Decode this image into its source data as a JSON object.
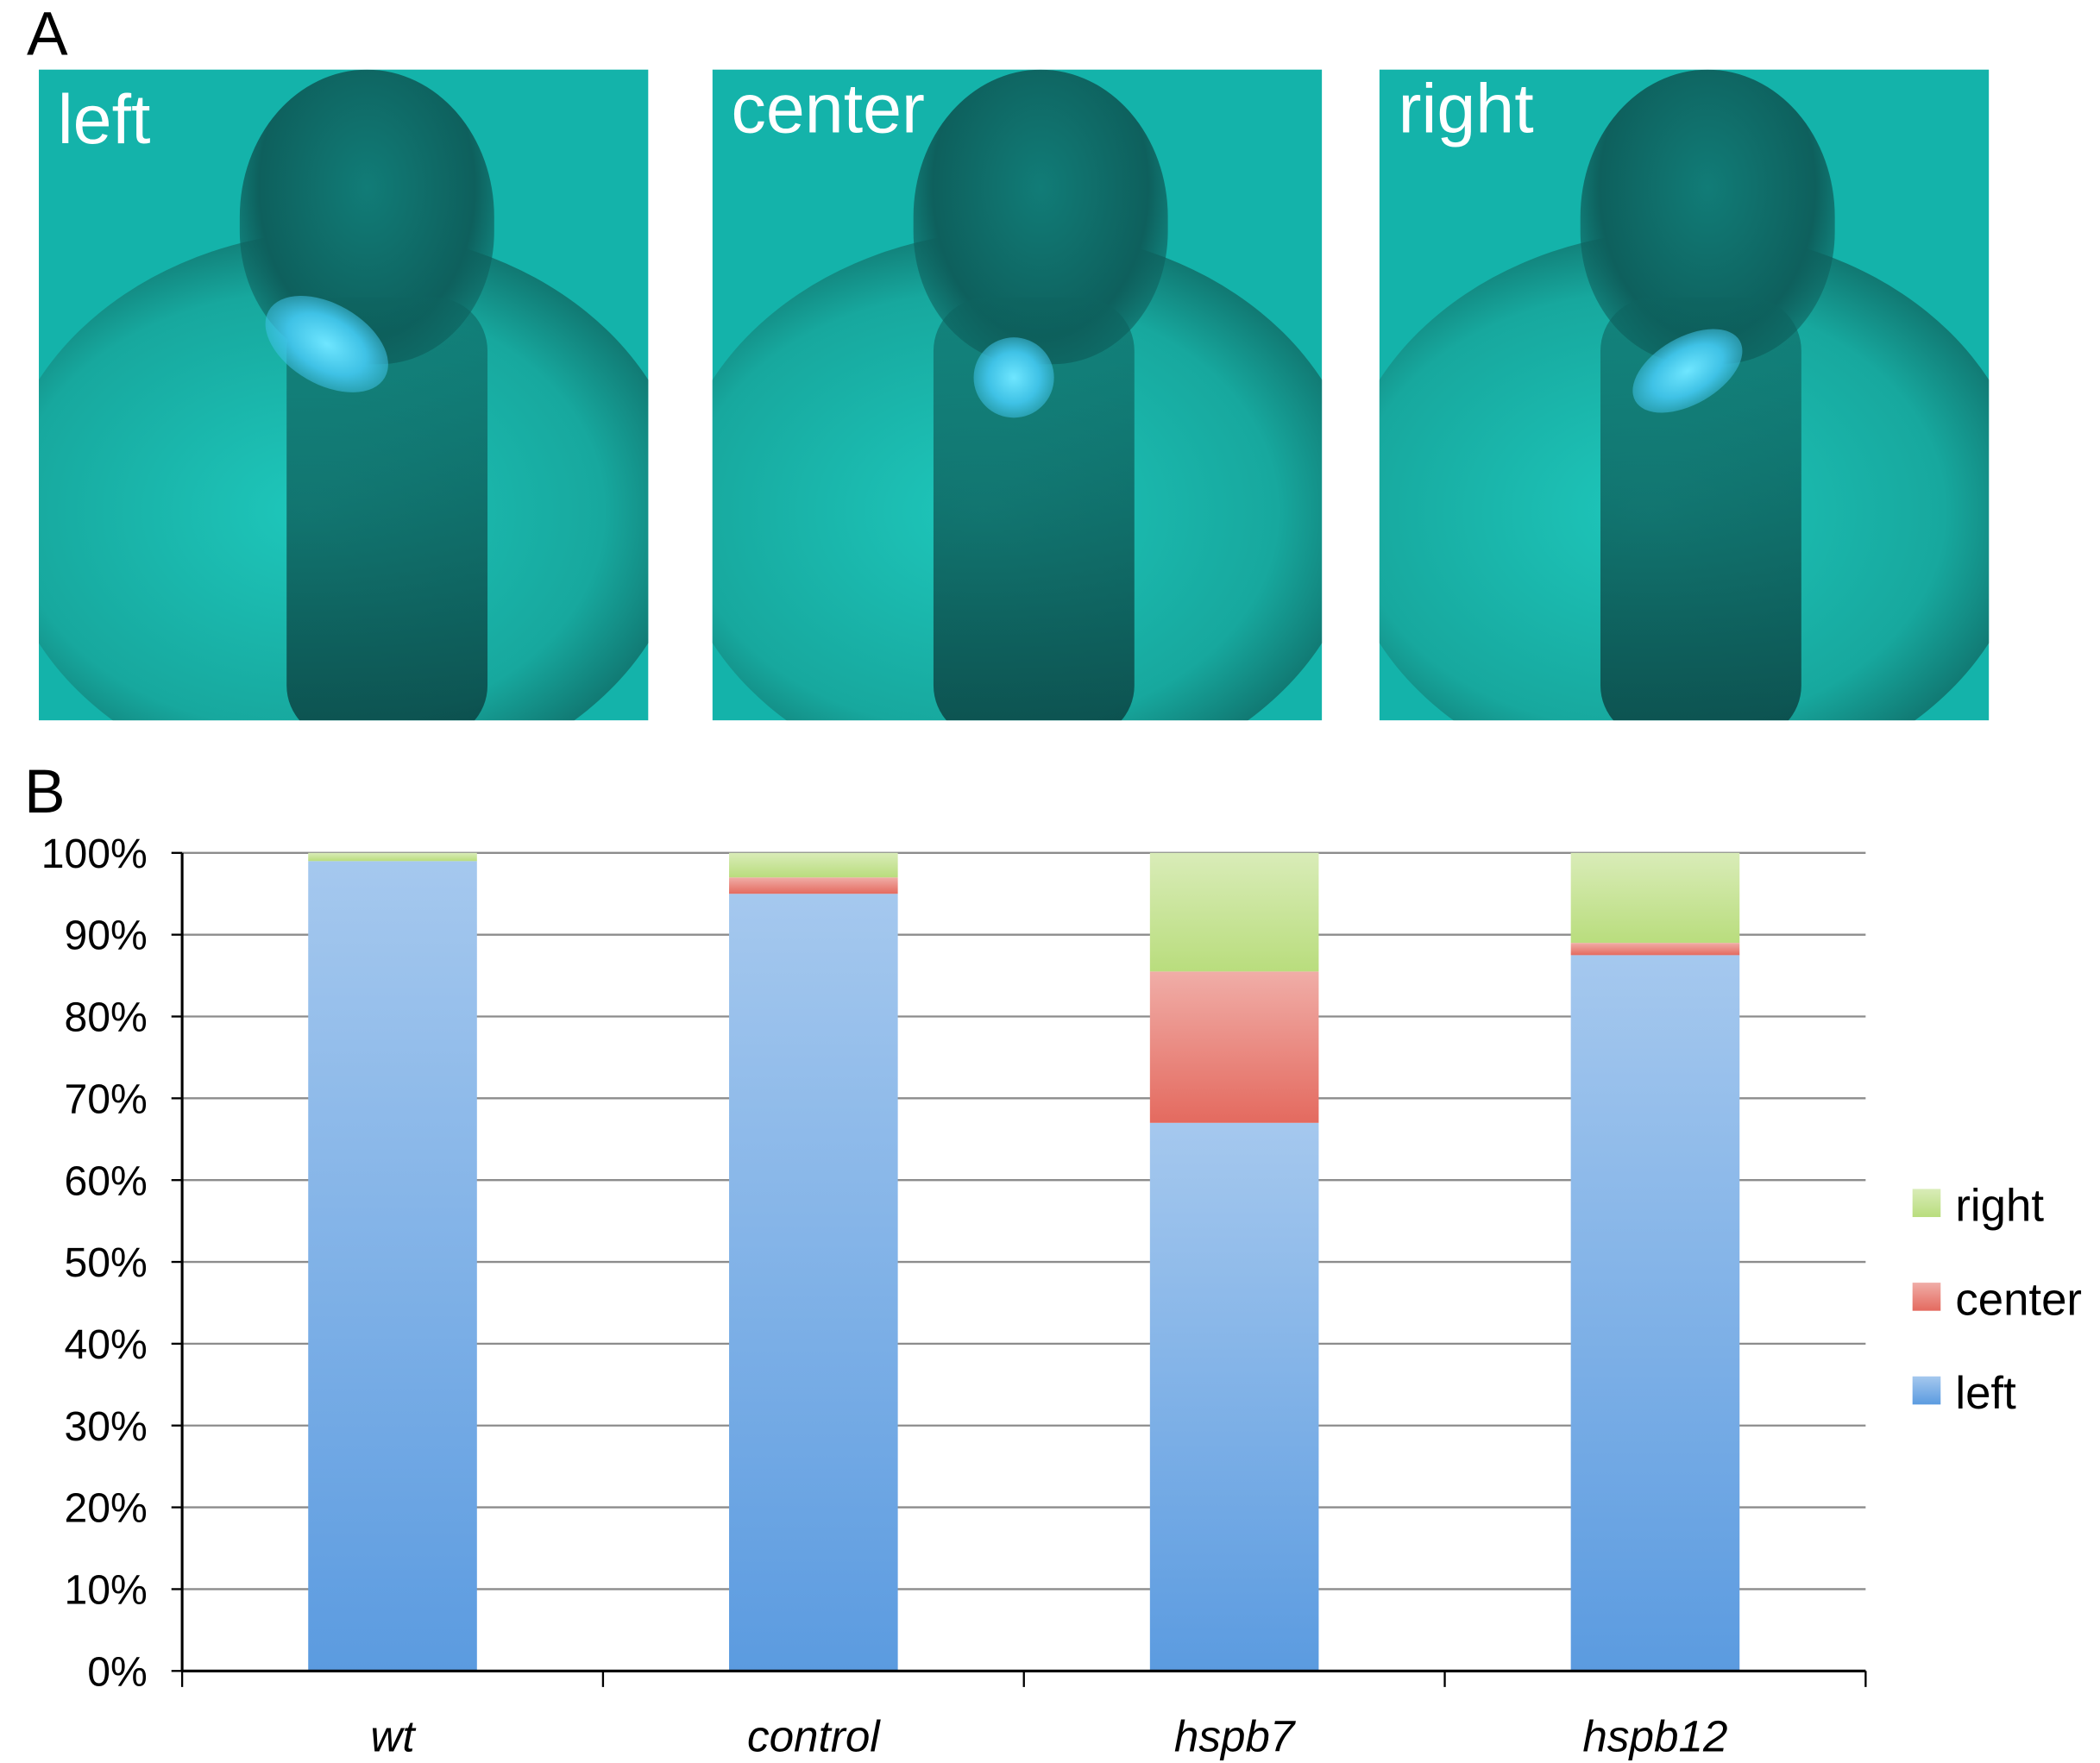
{
  "panels": {
    "a_letter": "A",
    "b_letter": "B"
  },
  "images": [
    {
      "label": "left"
    },
    {
      "label": "center"
    },
    {
      "label": "right"
    }
  ],
  "colors": {
    "right": "#b9dd7d",
    "center": "#e46a5f",
    "left": "#5b9be0"
  },
  "chart_data": {
    "type": "bar",
    "stacked": true,
    "categories": [
      "wt",
      "control",
      "hspb7",
      "hspb12"
    ],
    "series": [
      {
        "name": "left",
        "values": [
          99,
          95,
          67,
          87.5
        ]
      },
      {
        "name": "center",
        "values": [
          0,
          2,
          18.5,
          1.5
        ]
      },
      {
        "name": "right",
        "values": [
          1,
          3,
          14.5,
          11
        ]
      }
    ],
    "ylim": [
      0,
      100
    ],
    "yticks": [
      "0%",
      "10%",
      "20%",
      "30%",
      "40%",
      "50%",
      "60%",
      "70%",
      "80%",
      "90%",
      "100%"
    ],
    "grid": true,
    "legend": "right",
    "legend_order": [
      "right",
      "center",
      "left"
    ]
  }
}
